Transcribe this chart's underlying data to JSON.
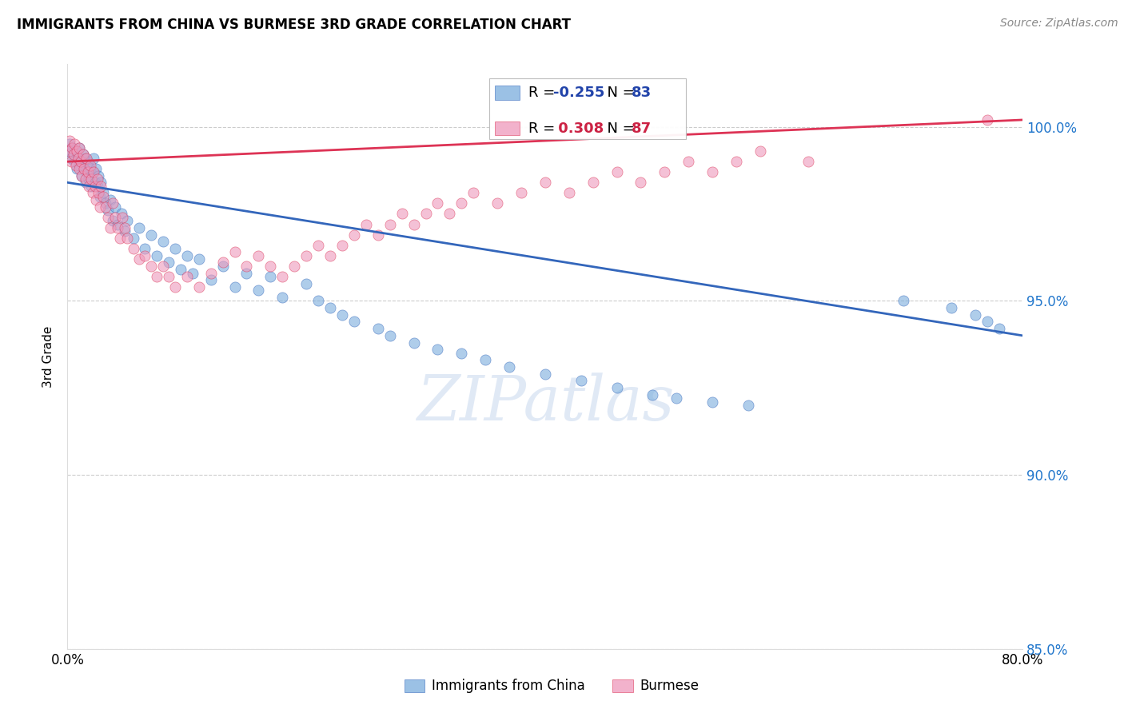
{
  "title": "IMMIGRANTS FROM CHINA VS BURMESE 3RD GRADE CORRELATION CHART",
  "source": "Source: ZipAtlas.com",
  "ylabel_label": "3rd Grade",
  "x_min": 0.0,
  "x_max": 0.8,
  "y_min": 0.878,
  "y_max": 1.018,
  "x_ticks": [
    0.0,
    0.1,
    0.2,
    0.3,
    0.4,
    0.5,
    0.6,
    0.7,
    0.8
  ],
  "x_tick_labels": [
    "0.0%",
    "",
    "",
    "",
    "",
    "",
    "",
    "",
    "80.0%"
  ],
  "y_ticks": [
    0.85,
    0.9,
    0.95,
    1.0
  ],
  "y_tick_labels": [
    "85.0%",
    "90.0%",
    "95.0%",
    "100.0%"
  ],
  "grid_color": "#cccccc",
  "blue_color": "#7aaddd",
  "pink_color": "#ee99bb",
  "blue_line_color": "#3366bb",
  "pink_line_color": "#dd3355",
  "legend_R_blue": "-0.255",
  "legend_N_blue": "83",
  "legend_R_pink": "0.308",
  "legend_N_pink": "87",
  "blue_x": [
    0.001,
    0.002,
    0.003,
    0.004,
    0.005,
    0.006,
    0.007,
    0.008,
    0.009,
    0.01,
    0.01,
    0.011,
    0.012,
    0.013,
    0.014,
    0.015,
    0.015,
    0.016,
    0.017,
    0.018,
    0.019,
    0.02,
    0.021,
    0.022,
    0.023,
    0.024,
    0.025,
    0.026,
    0.027,
    0.028,
    0.03,
    0.032,
    0.034,
    0.036,
    0.038,
    0.04,
    0.042,
    0.045,
    0.048,
    0.05,
    0.055,
    0.06,
    0.065,
    0.07,
    0.075,
    0.08,
    0.085,
    0.09,
    0.095,
    0.1,
    0.105,
    0.11,
    0.12,
    0.13,
    0.14,
    0.15,
    0.16,
    0.17,
    0.18,
    0.2,
    0.21,
    0.22,
    0.23,
    0.24,
    0.26,
    0.27,
    0.29,
    0.31,
    0.33,
    0.35,
    0.37,
    0.4,
    0.43,
    0.46,
    0.49,
    0.51,
    0.54,
    0.57,
    0.7,
    0.74,
    0.76,
    0.77,
    0.78
  ],
  "blue_y": [
    0.993,
    0.995,
    0.991,
    0.994,
    0.992,
    0.99,
    0.993,
    0.988,
    0.991,
    0.989,
    0.994,
    0.99,
    0.986,
    0.992,
    0.988,
    0.984,
    0.991,
    0.987,
    0.99,
    0.985,
    0.988,
    0.983,
    0.987,
    0.991,
    0.984,
    0.988,
    0.983,
    0.986,
    0.98,
    0.984,
    0.981,
    0.978,
    0.976,
    0.979,
    0.973,
    0.977,
    0.972,
    0.975,
    0.97,
    0.973,
    0.968,
    0.971,
    0.965,
    0.969,
    0.963,
    0.967,
    0.961,
    0.965,
    0.959,
    0.963,
    0.958,
    0.962,
    0.956,
    0.96,
    0.954,
    0.958,
    0.953,
    0.957,
    0.951,
    0.955,
    0.95,
    0.948,
    0.946,
    0.944,
    0.942,
    0.94,
    0.938,
    0.936,
    0.935,
    0.933,
    0.931,
    0.929,
    0.927,
    0.925,
    0.923,
    0.922,
    0.921,
    0.92,
    0.95,
    0.948,
    0.946,
    0.944,
    0.942
  ],
  "pink_x": [
    0.001,
    0.002,
    0.003,
    0.004,
    0.005,
    0.006,
    0.007,
    0.008,
    0.009,
    0.01,
    0.01,
    0.011,
    0.012,
    0.013,
    0.014,
    0.015,
    0.016,
    0.017,
    0.018,
    0.019,
    0.02,
    0.021,
    0.022,
    0.023,
    0.024,
    0.025,
    0.026,
    0.027,
    0.028,
    0.03,
    0.032,
    0.034,
    0.036,
    0.038,
    0.04,
    0.042,
    0.044,
    0.046,
    0.048,
    0.05,
    0.055,
    0.06,
    0.065,
    0.07,
    0.075,
    0.08,
    0.085,
    0.09,
    0.1,
    0.11,
    0.12,
    0.13,
    0.14,
    0.15,
    0.16,
    0.17,
    0.18,
    0.19,
    0.2,
    0.21,
    0.22,
    0.23,
    0.24,
    0.25,
    0.26,
    0.27,
    0.28,
    0.29,
    0.3,
    0.31,
    0.32,
    0.33,
    0.34,
    0.36,
    0.38,
    0.4,
    0.42,
    0.44,
    0.46,
    0.48,
    0.5,
    0.52,
    0.54,
    0.56,
    0.58,
    0.62,
    0.77
  ],
  "pink_y": [
    0.993,
    0.996,
    0.99,
    0.994,
    0.992,
    0.995,
    0.989,
    0.993,
    0.991,
    0.988,
    0.994,
    0.99,
    0.986,
    0.992,
    0.988,
    0.985,
    0.991,
    0.987,
    0.983,
    0.989,
    0.985,
    0.981,
    0.987,
    0.983,
    0.979,
    0.985,
    0.981,
    0.977,
    0.983,
    0.98,
    0.977,
    0.974,
    0.971,
    0.978,
    0.974,
    0.971,
    0.968,
    0.974,
    0.971,
    0.968,
    0.965,
    0.962,
    0.963,
    0.96,
    0.957,
    0.96,
    0.957,
    0.954,
    0.957,
    0.954,
    0.958,
    0.961,
    0.964,
    0.96,
    0.963,
    0.96,
    0.957,
    0.96,
    0.963,
    0.966,
    0.963,
    0.966,
    0.969,
    0.972,
    0.969,
    0.972,
    0.975,
    0.972,
    0.975,
    0.978,
    0.975,
    0.978,
    0.981,
    0.978,
    0.981,
    0.984,
    0.981,
    0.984,
    0.987,
    0.984,
    0.987,
    0.99,
    0.987,
    0.99,
    0.993,
    0.99,
    1.002
  ]
}
